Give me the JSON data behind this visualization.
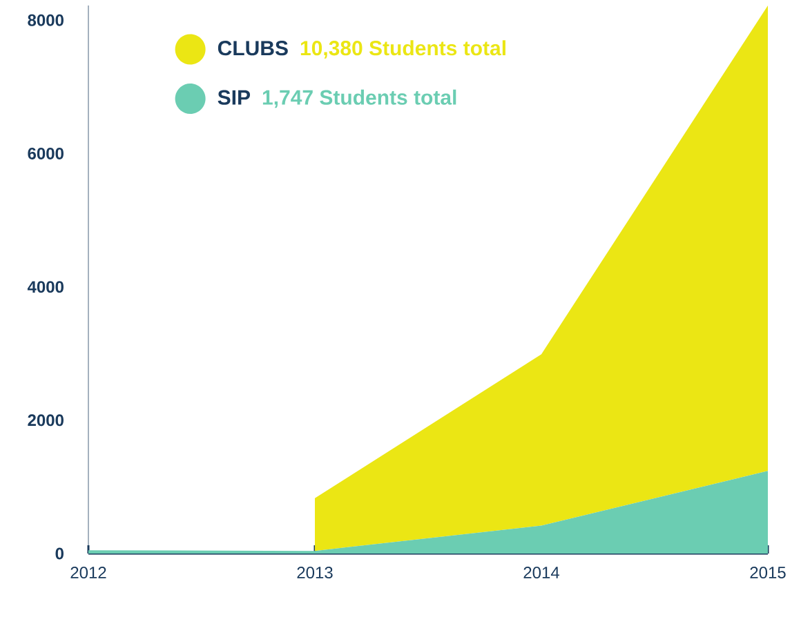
{
  "chart_data": {
    "type": "area",
    "stacked": true,
    "x": [
      2012,
      2013,
      2013,
      2014,
      2015
    ],
    "series": [
      {
        "name": "SIP",
        "color": "#6bcdb2",
        "values": [
          50,
          40,
          40,
          420,
          1240
        ]
      },
      {
        "name": "CLUBS",
        "color": "#ebe614",
        "values": [
          0,
          0,
          790,
          2570,
          6980
        ]
      }
    ],
    "xlim": [
      2012,
      2015
    ],
    "xticks": [
      2012,
      2013,
      2014,
      2015
    ],
    "ylim": [
      0,
      8220
    ],
    "yticks": [
      0,
      2000,
      4000,
      6000,
      8000
    ],
    "legend": "top",
    "annotations": [
      "1,747 Students total",
      "10,380 Students total"
    ]
  }
}
